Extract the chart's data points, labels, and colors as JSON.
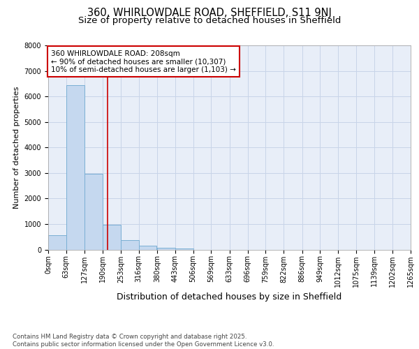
{
  "title": "360, WHIRLOWDALE ROAD, SHEFFIELD, S11 9NJ",
  "subtitle": "Size of property relative to detached houses in Sheffield",
  "xlabel": "Distribution of detached houses by size in Sheffield",
  "ylabel": "Number of detached properties",
  "property_size": 208,
  "annotation_line1": "360 WHIRLOWDALE ROAD: 208sqm",
  "annotation_line2": "← 90% of detached houses are smaller (10,307)",
  "annotation_line3": "10% of semi-detached houses are larger (1,103) →",
  "bar_left_edges": [
    0,
    63,
    127,
    190,
    253,
    316,
    380,
    443,
    506,
    569,
    633,
    696,
    759,
    822,
    886,
    949,
    1012,
    1075,
    1139,
    1202
  ],
  "bar_heights": [
    570,
    6450,
    2980,
    970,
    370,
    160,
    80,
    40,
    0,
    0,
    0,
    0,
    0,
    0,
    0,
    0,
    0,
    0,
    0,
    0
  ],
  "bin_width": 63,
  "bar_color": "#c5d8ef",
  "bar_edge_color": "#7aafd4",
  "red_line_color": "#cc0000",
  "annotation_box_edge_color": "#cc0000",
  "annotation_box_face_color": "#ffffff",
  "background_color": "#e8eef8",
  "grid_color": "#c8d4e8",
  "tick_labels": [
    "0sqm",
    "63sqm",
    "127sqm",
    "190sqm",
    "253sqm",
    "316sqm",
    "380sqm",
    "443sqm",
    "506sqm",
    "569sqm",
    "633sqm",
    "696sqm",
    "759sqm",
    "822sqm",
    "886sqm",
    "949sqm",
    "1012sqm",
    "1075sqm",
    "1139sqm",
    "1202sqm",
    "1265sqm"
  ],
  "ylim": [
    0,
    8000
  ],
  "yticks": [
    0,
    1000,
    2000,
    3000,
    4000,
    5000,
    6000,
    7000,
    8000
  ],
  "footer_text": "Contains HM Land Registry data © Crown copyright and database right 2025.\nContains public sector information licensed under the Open Government Licence v3.0.",
  "title_fontsize": 10.5,
  "subtitle_fontsize": 9.5,
  "xlabel_fontsize": 9,
  "ylabel_fontsize": 8,
  "tick_fontsize": 7,
  "annotation_fontsize": 7.5,
  "footer_fontsize": 6.2
}
